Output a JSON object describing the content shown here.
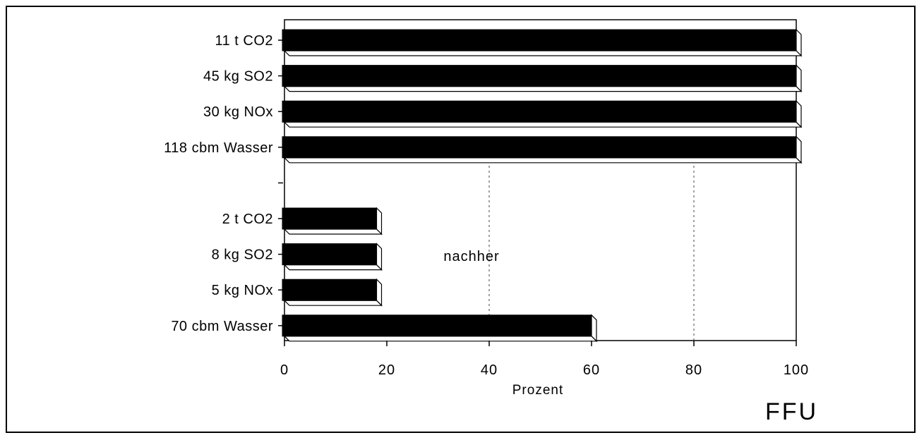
{
  "chart_data": {
    "type": "bar",
    "orientation": "horizontal",
    "categories": [
      "11 t CO2",
      "45 kg SO2",
      "30 kg NOx",
      "118 cbm Wasser",
      "",
      "2 t CO2",
      "8 kg SO2",
      "5 kg NOx",
      "70 cbm Wasser"
    ],
    "values": [
      100,
      100,
      100,
      100,
      null,
      18,
      18,
      18,
      60
    ],
    "xlabel": "Prozent",
    "ylabel": "",
    "xlim": [
      0,
      100
    ],
    "xticks": [
      0,
      20,
      40,
      60,
      80,
      100
    ],
    "grid": false,
    "annotations": [
      {
        "text": "nachher",
        "x": 40,
        "category_index": 6
      }
    ],
    "bar_color": "#000000"
  },
  "watermark": "FFU"
}
